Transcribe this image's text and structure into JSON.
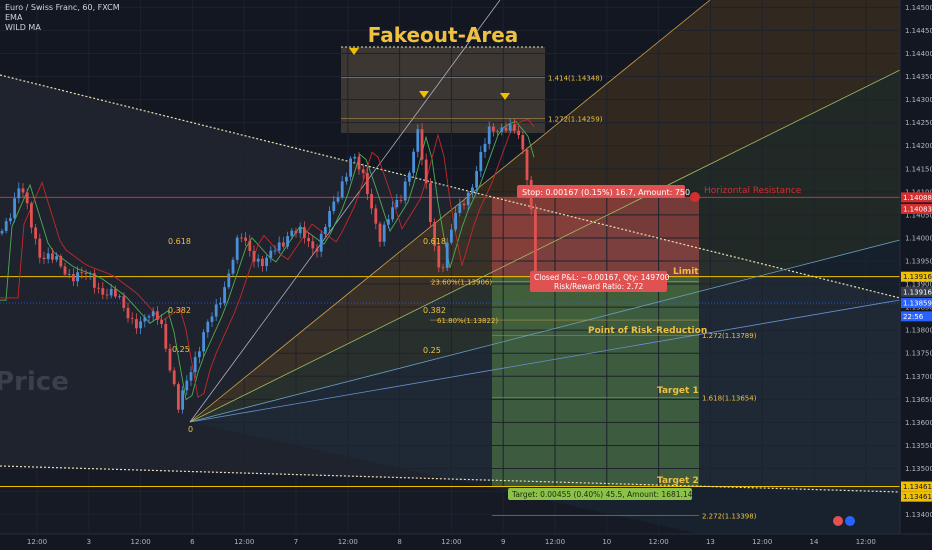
{
  "header": {
    "symbol": "Euro / Swiss Franc, 60, FXCM",
    "indicators": [
      "EMA",
      "WILD MA"
    ]
  },
  "chart_data": {
    "type": "candlestick",
    "title": "Fakeout-Area",
    "watermark": "Price",
    "ylim": [
      1.13358,
      1.14516
    ],
    "y_ticks": [
      "1.14500",
      "1.14450",
      "1.14400",
      "1.14350",
      "1.14300",
      "1.14250",
      "1.14200",
      "1.14150",
      "1.14100",
      "1.14050",
      "1.14000",
      "1.13950",
      "1.13900",
      "1.13850",
      "1.13800",
      "1.13750",
      "1.13700",
      "1.13650",
      "1.13600",
      "1.13550",
      "1.13500",
      "1.13450",
      "1.13400"
    ],
    "x_ticks": [
      "12:00",
      "3",
      "12:00",
      "6",
      "12:00",
      "7",
      "12:00",
      "8",
      "12:00",
      "9",
      "12:00",
      "10",
      "12:00",
      "13",
      "12:00",
      "14",
      "12:00"
    ],
    "price_tags": [
      {
        "label": "1.14088",
        "value": 1.14088,
        "color": "#d32f2f"
      },
      {
        "label": "1.14083",
        "value": 1.14063,
        "color": "#d32f2f"
      },
      {
        "label": "1.13916",
        "value": 1.13916,
        "color": "#f0c000"
      },
      {
        "label": "1.13916",
        "value": 1.13883,
        "color": "#3a3f4b"
      },
      {
        "label": "1.13859",
        "value": 1.13859,
        "color": "#2962ff"
      },
      {
        "label": "22:56",
        "value": 1.1383,
        "color": "#2962ff"
      },
      {
        "label": "1.13461",
        "value": 1.13461,
        "color": "#f0c000"
      },
      {
        "label": "1.13461",
        "value": 1.13439,
        "color": "#f0c000"
      }
    ],
    "fib_extension": [
      {
        "label": "1.414(1.14348)",
        "value": 1.14348
      },
      {
        "label": "1.272(1.14259)",
        "value": 1.14259
      },
      {
        "label": "23.60%(1.13906)",
        "value": 1.13906
      },
      {
        "label": "61.80%(1.13822)",
        "value": 1.13822
      },
      {
        "label": "1.272(1.13789)",
        "value": 1.13789
      },
      {
        "label": "1.618(1.13654)",
        "value": 1.13654
      },
      {
        "label": "2.272(1.13398)",
        "value": 1.13398
      }
    ],
    "fan_labels": [
      "0.618",
      "0.618",
      "0.382",
      "0.382",
      "0.25",
      "0.25",
      "0"
    ],
    "annotations": {
      "horizontal_resistance": "Horizontal Resistance",
      "limit": "Limit",
      "point_of_risk_reduction": "Point of Risk-Reduction",
      "target1": "Target 1",
      "target2": "Target 2"
    },
    "position": {
      "stop_label": "Stop: 0.00167 (0.15%) 16.7, Amount: 750",
      "closed_pnl_label": "Closed P&L: −0.00167, Qty: 149700",
      "risk_reward_label": "Risk/Reward Ratio: 2.72",
      "target_label": "Target: 0.00455 (0.40%) 45.5, Amount: 1681.14",
      "entry": 1.13921,
      "stop": 1.14088,
      "target": 1.13466
    },
    "levels": {
      "horizontal_resistance": 1.14088,
      "limit": 1.13916,
      "current_price": 1.13859,
      "support_yellow": 1.13461
    },
    "colors": {
      "background": "#131722",
      "up": "#4a90d9",
      "down": "#e05252",
      "accent": "#f0c000",
      "resistance": "#d32f2f"
    }
  }
}
